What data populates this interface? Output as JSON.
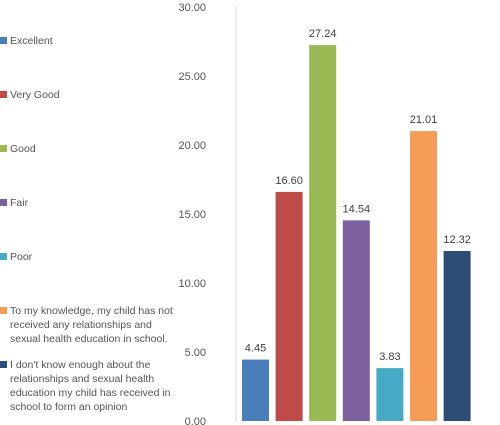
{
  "chart_data": {
    "type": "bar",
    "title": "",
    "xlabel": "",
    "ylabel": "",
    "ylim": [
      0,
      30
    ],
    "yticks": [
      "0.00",
      "5.00",
      "10.00",
      "15.00",
      "20.00",
      "25.00",
      "30.00"
    ],
    "grid": false,
    "legend_position": "left",
    "series": [
      {
        "name": "Excellent",
        "value": 4.45,
        "label": "4.45",
        "color": "#4a7ebb"
      },
      {
        "name": "Very Good",
        "value": 16.6,
        "label": "16.60",
        "color": "#be4b48"
      },
      {
        "name": "Good",
        "value": 27.24,
        "label": "27.24",
        "color": "#98b954"
      },
      {
        "name": "Fair",
        "value": 14.54,
        "label": "14.54",
        "color": "#7d60a0"
      },
      {
        "name": "Poor",
        "value": 3.83,
        "label": "3.83",
        "color": "#46aac4"
      },
      {
        "name": "To my knowledge, my child has not received any relationships and sexual health education in school.",
        "value": 21.01,
        "label": "21.01",
        "color": "#f59d56"
      },
      {
        "name": "I don't know enough about the relationships and sexual health education my child has received in school to form an opinion",
        "value": 12.32,
        "label": "12.32",
        "color": "#2c4d75"
      }
    ]
  }
}
